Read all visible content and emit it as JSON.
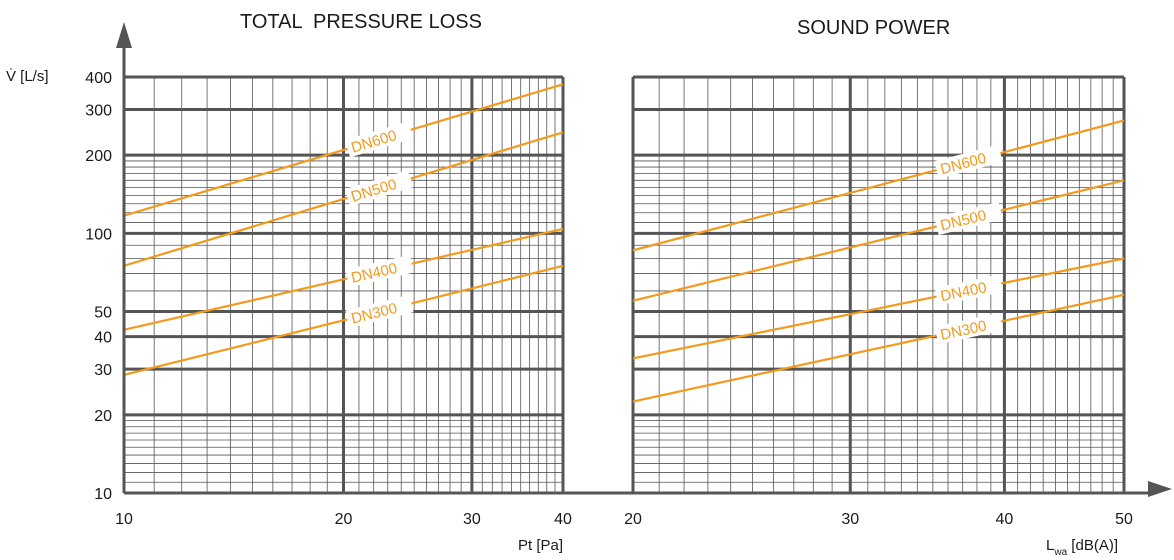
{
  "chart_data": {
    "type": "line",
    "y_axis": {
      "label": "V̇ [L/s]",
      "scale": "log",
      "range": [
        10,
        400
      ],
      "tick_values": [
        10,
        20,
        30,
        40,
        50,
        100,
        200,
        300,
        400
      ],
      "tick_labels": [
        "10",
        "20",
        "30",
        "40",
        "50",
        "100",
        "200",
        "300",
        "400"
      ]
    },
    "panels": [
      {
        "title": "TOTAL  PRESSURE LOSS",
        "x_axis": {
          "label": "Pt [Pa]",
          "scale": "log",
          "range": [
            10,
            40
          ],
          "tick_values": [
            10,
            20,
            30,
            40
          ],
          "tick_labels": [
            "10",
            "20",
            "30",
            "40"
          ]
        },
        "series": [
          {
            "name": "DN600",
            "x": [
              10,
              40
            ],
            "y": [
              117,
              375
            ],
            "label_at_x": 20.5
          },
          {
            "name": "DN500",
            "x": [
              10,
              40
            ],
            "y": [
              75,
              245
            ],
            "label_at_x": 20.5
          },
          {
            "name": "DN400",
            "x": [
              10,
              40
            ],
            "y": [
              42.5,
              104
            ],
            "label_at_x": 20.5
          },
          {
            "name": "DN300",
            "x": [
              10,
              40
            ],
            "y": [
              28.5,
              75
            ],
            "label_at_x": 20.5
          }
        ]
      },
      {
        "title": "SOUND POWER",
        "x_axis": {
          "label_main": "L",
          "label_sub": "wa",
          "label_rest": " [dB(A)]",
          "scale": "log",
          "range": [
            20,
            50
          ],
          "tick_values": [
            20,
            30,
            40,
            50
          ],
          "tick_labels": [
            "20",
            "30",
            "40",
            "50"
          ]
        },
        "series": [
          {
            "name": "DN600",
            "x": [
              20,
              50
            ],
            "y": [
              86,
              272
            ],
            "label_at_x": 35.5
          },
          {
            "name": "DN500",
            "x": [
              20,
              50
            ],
            "y": [
              55,
              160
            ],
            "label_at_x": 35.5
          },
          {
            "name": "DN400",
            "x": [
              20,
              50
            ],
            "y": [
              33,
              80
            ],
            "label_at_x": 35.5
          },
          {
            "name": "DN300",
            "x": [
              20,
              50
            ],
            "y": [
              22.5,
              58
            ],
            "label_at_x": 35.5
          }
        ]
      }
    ],
    "line_color": "#f39a1e",
    "grid_color": "#555555",
    "grid": true
  }
}
